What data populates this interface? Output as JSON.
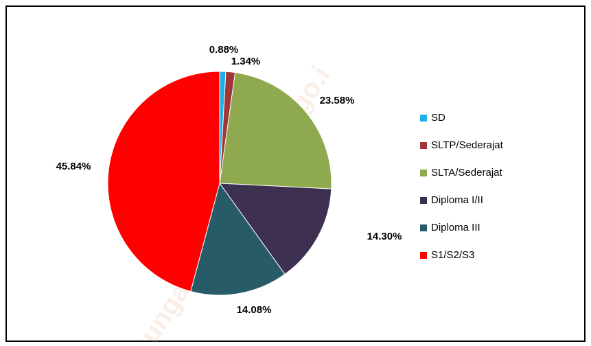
{
  "chart_data": {
    "type": "pie",
    "categories": [
      "SD",
      "SLTP/Sederajat",
      "SLTA/Sederajat",
      "Diploma I/II",
      "Diploma III",
      "S1/S2/S3"
    ],
    "values": [
      0.88,
      1.34,
      23.58,
      14.3,
      14.08,
      45.84
    ],
    "value_labels": [
      "0.88%",
      "1.34%",
      "23.58%",
      "14.30%",
      "14.08%",
      "45.84%"
    ],
    "colors": [
      "#1fb0e6",
      "#a0353a",
      "#8faa4e",
      "#3e3050",
      "#265b67",
      "#ff0000"
    ],
    "legend": "right",
    "watermark": "ungaitengahkab.bps.go.i"
  }
}
